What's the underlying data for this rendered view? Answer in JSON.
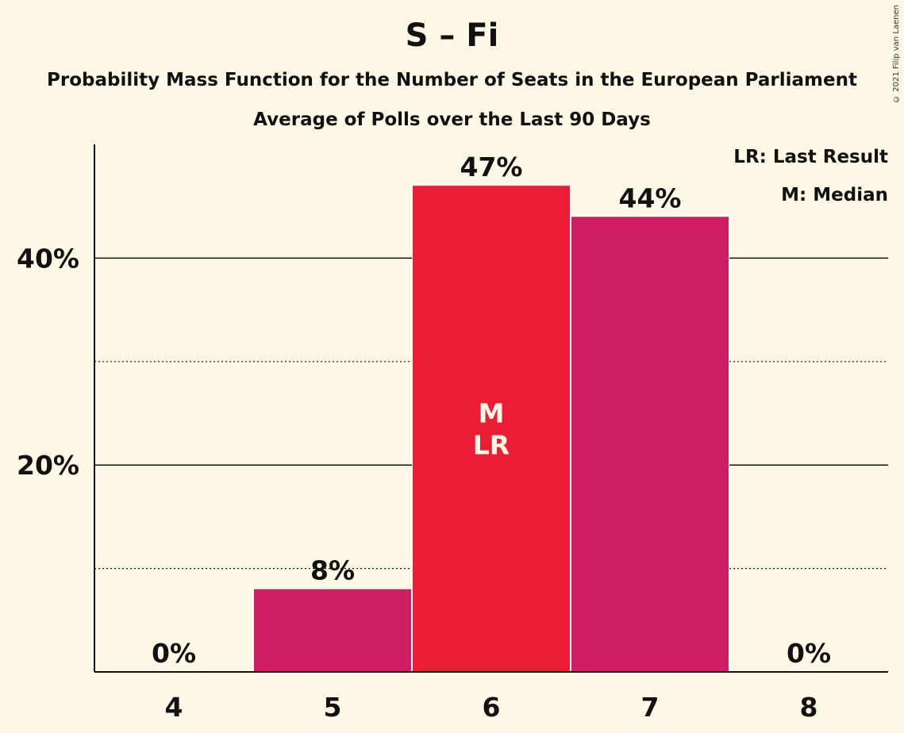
{
  "title": "S – Fi",
  "subtitle": "Probability Mass Function for the Number of Seats in the European Parliament",
  "subtitle2": "Average of Polls over the Last 90 Days",
  "legend": {
    "last_result": "LR: Last Result",
    "median": "M: Median"
  },
  "copyright": "© 2021 Filip van Laenen",
  "colors": {
    "background": "#FEF9E6",
    "bar": "#CE1E63",
    "median_bar": "#ED1C35",
    "text": "#111111"
  },
  "chart_data": {
    "type": "bar",
    "categories": [
      "4",
      "5",
      "6",
      "7",
      "8"
    ],
    "values": [
      0,
      8,
      47,
      44,
      0
    ],
    "labels": [
      "0%",
      "8%",
      "47%",
      "44%",
      "0%"
    ],
    "inner_labels": {
      "6": [
        "M",
        "LR"
      ]
    },
    "ylim": [
      0,
      51
    ],
    "y_ticks": [
      {
        "value": 20,
        "label": "20%"
      },
      {
        "value": 40,
        "label": "40%"
      }
    ],
    "minor_gridlines": [
      10,
      30
    ],
    "grid": true,
    "legend_position": "top-right"
  }
}
